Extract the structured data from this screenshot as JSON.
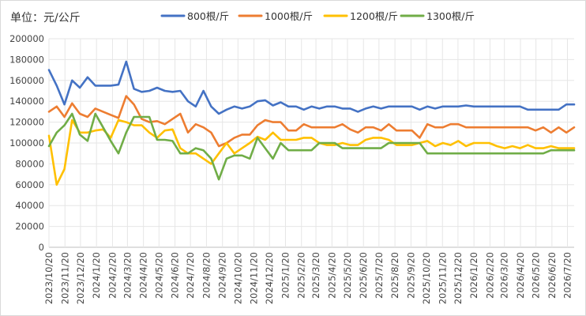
{
  "chart_data": {
    "type": "line",
    "unit_label": "单位：元/公斤",
    "title": "",
    "xlabel": "",
    "ylabel": "",
    "ylim": [
      0,
      200000
    ],
    "y_ticks": [
      0,
      20000,
      40000,
      60000,
      80000,
      100000,
      120000,
      140000,
      160000,
      180000,
      200000
    ],
    "grid": true,
    "legend_position": "top",
    "x_tick_labels": [
      "2023/10/20",
      "2023/11/20",
      "2023/12/20",
      "2024/1/20",
      "2024/2/20",
      "2024/3/20",
      "2024/4/20",
      "2024/5/20",
      "2024/6/20",
      "2024/7/20",
      "2024/8/20",
      "2024/9/20",
      "2024/10/20",
      "2024/11/20",
      "2024/12/20",
      "2025/1/20",
      "2025/2/20",
      "2025/3/20",
      "2025/4/20",
      "2025/5/20",
      "2025/6/20",
      "2025/7/20",
      "2025/8/20",
      "2025/9/20",
      "2025/10/20",
      "2025/11/20",
      "2025/12/20",
      "2026/1/20",
      "2026/2/20",
      "2026/3/20",
      "2026/4/20",
      "2026/5/20",
      "2026/6/20",
      "2026/7/20"
    ],
    "x_start": "2023/10/20",
    "x_end": "2026/8/2",
    "series": [
      {
        "name": "800根/斤",
        "color": "#4472C4",
        "values": [
          170000,
          155000,
          137000,
          160000,
          153000,
          163000,
          155000,
          155000,
          155000,
          156000,
          178000,
          152000,
          149000,
          150000,
          153000,
          150000,
          149000,
          150000,
          140000,
          135000,
          150000,
          135000,
          128000,
          132000,
          135000,
          133000,
          135000,
          140000,
          141000,
          136000,
          139000,
          135000,
          135000,
          132000,
          135000,
          133000,
          135000,
          135000,
          133000,
          133000,
          130000,
          133000,
          135000,
          133000,
          135000,
          135000,
          135000,
          135000,
          132000,
          135000,
          133000,
          135000,
          135000,
          135000,
          136000,
          135000,
          135000,
          135000,
          135000,
          135000,
          135000,
          135000,
          132000,
          132000,
          132000,
          132000,
          132000,
          137000,
          137000
        ]
      },
      {
        "name": "1000根/斤",
        "color": "#ED7D31",
        "values": [
          130000,
          135000,
          125000,
          138000,
          128000,
          125000,
          133000,
          130000,
          127000,
          124000,
          145000,
          137000,
          123000,
          120000,
          121000,
          118000,
          123000,
          128000,
          110000,
          118000,
          115000,
          110000,
          97000,
          100000,
          105000,
          108000,
          108000,
          117000,
          122000,
          120000,
          120000,
          112000,
          112000,
          118000,
          115000,
          115000,
          115000,
          115000,
          118000,
          113000,
          110000,
          115000,
          115000,
          112000,
          118000,
          112000,
          112000,
          112000,
          105000,
          118000,
          115000,
          115000,
          118000,
          118000,
          115000,
          115000,
          115000,
          115000,
          115000,
          115000,
          115000,
          115000,
          115000,
          112000,
          115000,
          110000,
          115000,
          110000,
          115000
        ]
      },
      {
        "name": "1200根/斤",
        "color": "#FFC000",
        "values": [
          107000,
          60000,
          75000,
          122000,
          110000,
          110000,
          112000,
          113000,
          105000,
          122000,
          120000,
          117000,
          117000,
          110000,
          105000,
          112000,
          113000,
          95000,
          90000,
          90000,
          85000,
          80000,
          90000,
          100000,
          90000,
          95000,
          100000,
          106000,
          103000,
          110000,
          103000,
          103000,
          103000,
          105000,
          105000,
          100000,
          98000,
          98000,
          100000,
          98000,
          98000,
          103000,
          105000,
          105000,
          103000,
          98000,
          98000,
          98000,
          100000,
          102000,
          97000,
          100000,
          98000,
          102000,
          97000,
          100000,
          100000,
          100000,
          97000,
          95000,
          97000,
          95000,
          98000,
          95000,
          95000,
          97000,
          95000,
          95000,
          95000
        ]
      },
      {
        "name": "1300根/斤",
        "color": "#70AD47",
        "values": [
          97000,
          110000,
          117000,
          128000,
          108000,
          102000,
          128000,
          115000,
          102000,
          90000,
          110000,
          125000,
          125000,
          125000,
          103000,
          103000,
          102000,
          90000,
          90000,
          95000,
          93000,
          85000,
          65000,
          85000,
          88000,
          88000,
          85000,
          105000,
          95000,
          85000,
          100000,
          93000,
          93000,
          93000,
          93000,
          100000,
          100000,
          100000,
          95000,
          95000,
          95000,
          95000,
          95000,
          95000,
          100000,
          100000,
          100000,
          100000,
          100000,
          90000,
          90000,
          90000,
          90000,
          90000,
          90000,
          90000,
          90000,
          90000,
          90000,
          90000,
          90000,
          90000,
          90000,
          90000,
          90000,
          93000,
          93000,
          93000,
          93000
        ]
      }
    ]
  }
}
